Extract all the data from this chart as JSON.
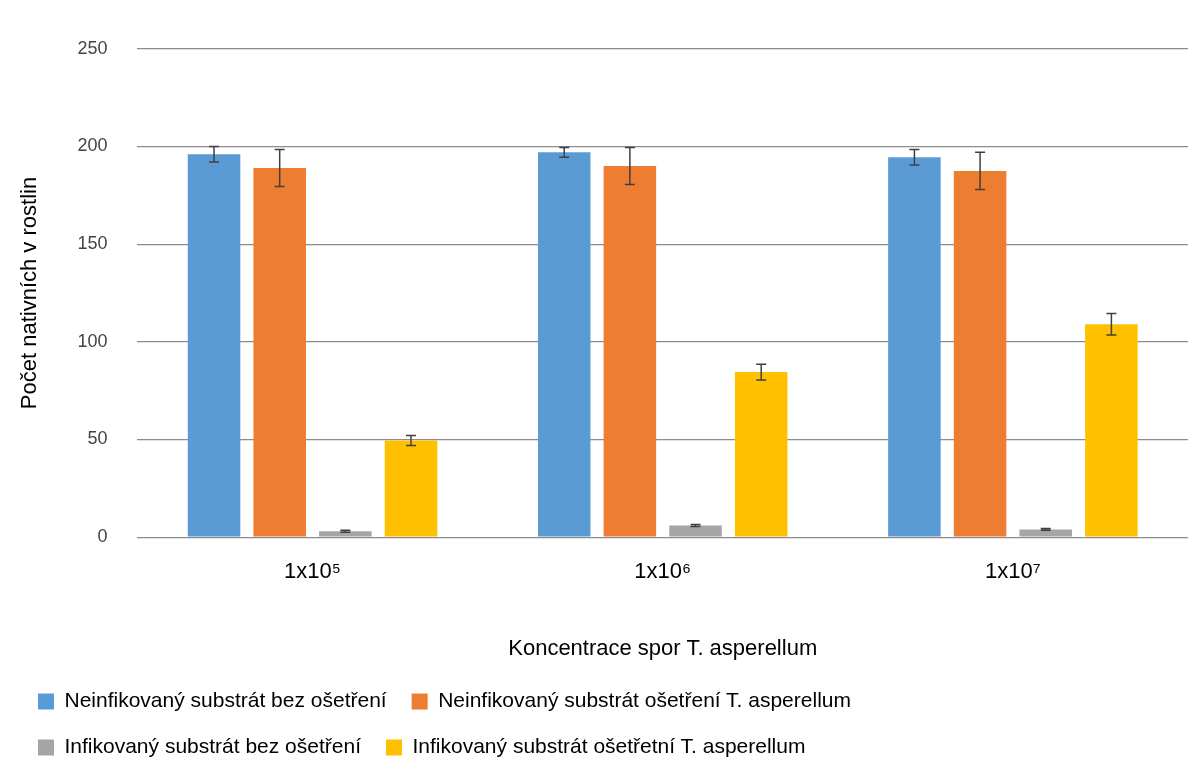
{
  "chart_data": {
    "type": "bar",
    "xlabel": "Koncentrace spor T. asperellum",
    "ylabel": "Počet nativních v rostlin",
    "categories": [
      "1x10⁵",
      "1x10⁶",
      "1x10⁷"
    ],
    "series": [
      {
        "name": "Neinfikovaný substrát bez ošetření",
        "color": "#5b9bd5",
        "values": [
          196,
          197,
          194.5
        ],
        "errors": [
          4,
          2.5,
          4
        ]
      },
      {
        "name": "Neinfikovaný substrát ošetření T. asperellum",
        "color": "#ed7d31",
        "values": [
          189,
          190,
          187.5
        ],
        "errors": [
          9.5,
          9.5,
          9.5
        ]
      },
      {
        "name": "Infikovaný substrát bez ošetření",
        "color": "#a5a5a5",
        "values": [
          3,
          6,
          4
        ],
        "errors": [
          0.5,
          0.5,
          0.5
        ]
      },
      {
        "name": "Infikovaný substrát ošetřetní T. asperellum",
        "color": "#ffc000",
        "values": [
          49.5,
          84.5,
          109
        ],
        "errors": [
          2.5,
          4,
          5.5
        ]
      }
    ],
    "ylim": [
      0,
      250
    ],
    "yticks": [
      0,
      50,
      100,
      150,
      200,
      250
    ],
    "grid": "y",
    "legend": "bottom"
  }
}
